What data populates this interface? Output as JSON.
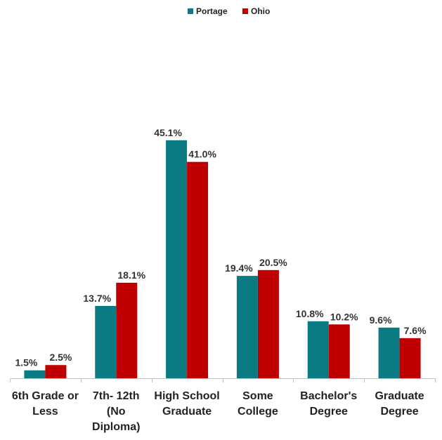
{
  "chart_data": {
    "type": "bar",
    "title": "",
    "xlabel": "",
    "ylabel": "",
    "ylim": [
      0,
      50
    ],
    "grid": false,
    "legend_position": "top-center",
    "categories": [
      [
        "6th Grade or",
        "Less"
      ],
      [
        "7th- 12th",
        "(No",
        "Diploma)"
      ],
      [
        "High School",
        "Graduate"
      ],
      [
        "Some",
        "College"
      ],
      [
        "Bachelor's",
        "Degree"
      ],
      [
        "Graduate",
        "Degree"
      ]
    ],
    "series": [
      {
        "name": "Portage",
        "color": "#0a7b83",
        "values": [
          1.5,
          13.7,
          45.1,
          19.4,
          10.8,
          9.6
        ],
        "labels": [
          "1.5%",
          "13.7%",
          "45.1%",
          "19.4%",
          "10.8%",
          "9.6%"
        ]
      },
      {
        "name": "Ohio",
        "color": "#c00000",
        "values": [
          2.5,
          18.1,
          41.0,
          20.5,
          10.2,
          7.6
        ],
        "labels": [
          "2.5%",
          "18.1%",
          "41.0%",
          "20.5%",
          "10.2%",
          "7.6%"
        ]
      }
    ]
  }
}
